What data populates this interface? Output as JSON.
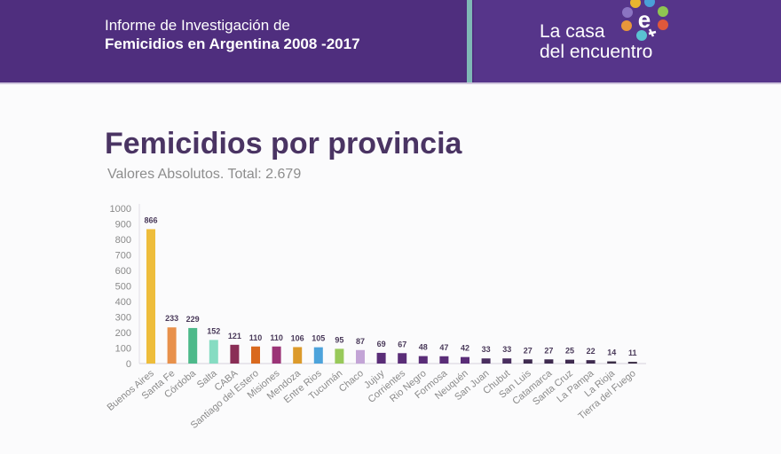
{
  "header": {
    "title_line1": "Informe de Investigación de",
    "title_line2": "Femicidios en Argentina 2008 -2017",
    "logo_line1": "La casa",
    "logo_line2": "del encuentro",
    "logo_icon": "female-symbol-e-icon",
    "bg_color": "#4f2e7e",
    "divider_color": "#7fb8b6"
  },
  "chart_data": {
    "type": "bar",
    "title": "Femicidios por provincia",
    "subtitle": "Valores Absolutos. Total: 2.679",
    "xlabel": "",
    "ylabel": "",
    "ylim": [
      0,
      1000
    ],
    "yticks": [
      "0",
      "100",
      "200",
      "300",
      "400",
      "500",
      "600",
      "700",
      "800",
      "900",
      "1000"
    ],
    "grid": false,
    "categories": [
      "Buenos Aires",
      "Santa Fe",
      "Córdoba",
      "Salta",
      "CABA",
      "Santiago del Estero",
      "Misiones",
      "Mendoza",
      "Entre Rios",
      "Tucumán",
      "Chaco",
      "Jujuy",
      "Corrientes",
      "Rio Negro",
      "Formosa",
      "Neuquén",
      "San Juan",
      "Chubut",
      "San Luis",
      "Catamarca",
      "Santa Cruz",
      "La Pampa",
      "La Rioja",
      "Tierra del Fuego"
    ],
    "values": [
      866,
      233,
      229,
      152,
      121,
      110,
      110,
      106,
      105,
      95,
      87,
      69,
      67,
      48,
      47,
      42,
      33,
      33,
      27,
      27,
      25,
      22,
      14,
      11
    ],
    "value_labels": [
      "866",
      "233",
      "229",
      "152",
      "121",
      "110",
      "110",
      "106",
      "105",
      "95",
      "87",
      "69",
      "67",
      "48",
      "47",
      "42",
      "33",
      "33",
      "27",
      "27",
      "25",
      "22",
      "14",
      "11"
    ],
    "colors": [
      "#eebd3b",
      "#e8914b",
      "#4db98a",
      "#86dcc2",
      "#8a2e56",
      "#d9691e",
      "#9b3477",
      "#dc9a2b",
      "#4da3db",
      "#98c95a",
      "#c3a4d6",
      "#5a2d78",
      "#5a2d78",
      "#5a2d78",
      "#5a2d78",
      "#5a2d78",
      "#4a2f60",
      "#4a2f60",
      "#3f2b50",
      "#3f2b50",
      "#3f2b50",
      "#3f2b50",
      "#3a2d45",
      "#3a2d45"
    ]
  }
}
